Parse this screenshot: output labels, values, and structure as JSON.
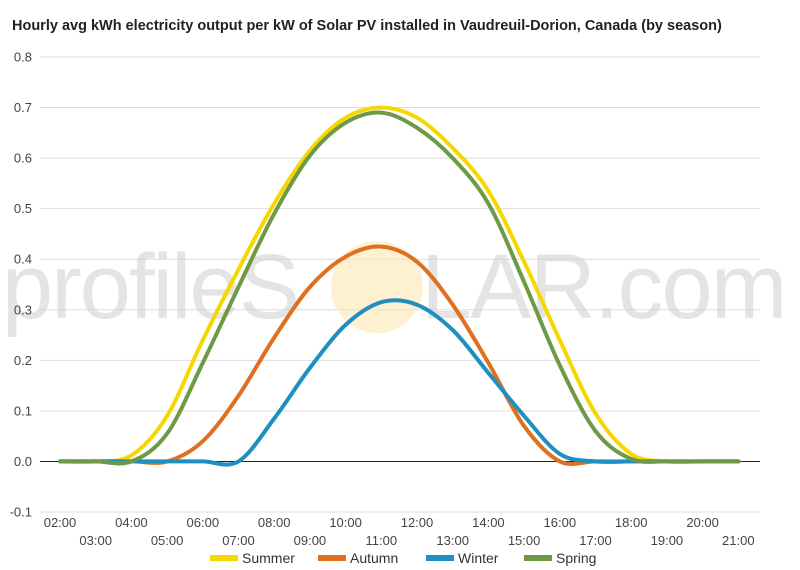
{
  "chart_data": {
    "type": "line",
    "title": "Hourly avg kWh electricity output per kW of Solar PV installed in Vaudreuil-Dorion, Canada (by season)",
    "xlabel": "",
    "ylabel": "",
    "ylim": [
      -0.1,
      0.8
    ],
    "yticks": [
      "-0.1",
      "0.0",
      "0.1",
      "0.2",
      "0.3",
      "0.4",
      "0.5",
      "0.6",
      "0.7",
      "0.8"
    ],
    "xticks_upper": [
      "02:00",
      "04:00",
      "06:00",
      "08:00",
      "10:00",
      "12:00",
      "14:00",
      "16:00",
      "18:00",
      "20:00"
    ],
    "xticks_lower": [
      "03:00",
      "05:00",
      "07:00",
      "09:00",
      "11:00",
      "13:00",
      "15:00",
      "17:00",
      "19:00",
      "21:00"
    ],
    "x": [
      2,
      3,
      4,
      5,
      6,
      7,
      8,
      9,
      10,
      11,
      12,
      13,
      14,
      15,
      16,
      17,
      18,
      19,
      20,
      21
    ],
    "grid": true,
    "legend": "bottom",
    "series": [
      {
        "name": "Summer",
        "color": "#f7d700",
        "values": [
          0.0,
          0.0,
          0.012,
          0.09,
          0.24,
          0.38,
          0.51,
          0.615,
          0.68,
          0.7,
          0.68,
          0.62,
          0.535,
          0.395,
          0.24,
          0.095,
          0.015,
          0.0,
          0.0,
          0.0
        ]
      },
      {
        "name": "Autumn",
        "color": "#e07020",
        "values": [
          0.0,
          0.0,
          0.0,
          0.0,
          0.04,
          0.13,
          0.245,
          0.345,
          0.405,
          0.425,
          0.395,
          0.31,
          0.195,
          0.07,
          0.0,
          0.0,
          0.0,
          0.0,
          0.0,
          0.0
        ]
      },
      {
        "name": "Winter",
        "color": "#1e8fc0",
        "values": [
          0.0,
          0.0,
          0.0,
          0.0,
          0.0,
          0.0,
          0.085,
          0.185,
          0.27,
          0.315,
          0.31,
          0.26,
          0.175,
          0.09,
          0.015,
          0.0,
          0.0,
          0.0,
          0.0,
          0.0
        ]
      },
      {
        "name": "Spring",
        "color": "#6e9a47",
        "values": [
          0.0,
          0.0,
          0.0,
          0.055,
          0.195,
          0.345,
          0.49,
          0.605,
          0.67,
          0.69,
          0.66,
          0.6,
          0.51,
          0.355,
          0.19,
          0.06,
          0.005,
          0.0,
          0.0,
          0.0
        ]
      }
    ]
  },
  "watermark": {
    "text_left": "profileS",
    "text_right": "LAR.com",
    "sun_color": "#fde7b3"
  }
}
